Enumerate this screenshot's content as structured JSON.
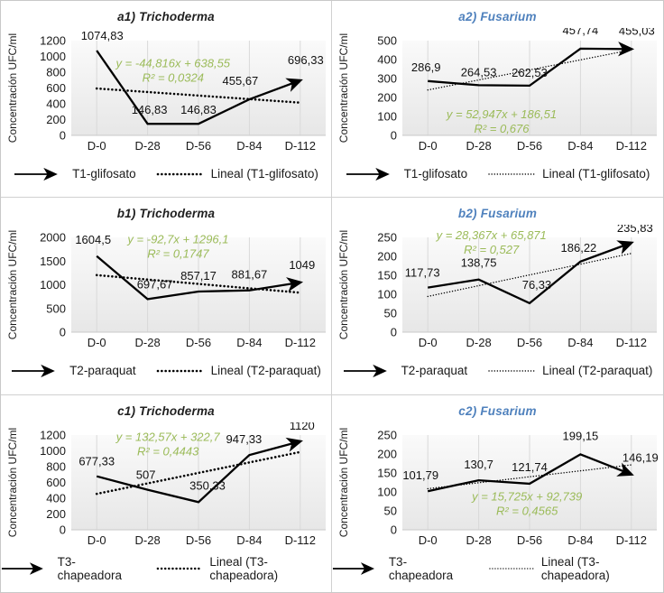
{
  "figure": {
    "background": "#ffffff",
    "border_color": "#c9c9c9",
    "gridline_color": "#d9d9d9",
    "series_color": "#000000",
    "equation_color": "#9bbb59",
    "trichoderma_title_color": "#1f1f1f",
    "fusarium_title_color": "#4f81bd",
    "plot_fill_top": "#fafafa",
    "plot_fill_bottom": "#e7e7e7"
  },
  "chart_data": [
    {
      "id": "a1",
      "type": "line",
      "title": "a1) Trichoderma",
      "title_color": "#1f1f1f",
      "ylabel": "Concentración UFC/ml",
      "categories": [
        "D-0",
        "D-28",
        "D-56",
        "D-84",
        "D-112"
      ],
      "values": [
        1074.83,
        146.83,
        146.83,
        455.67,
        696.33
      ],
      "value_labels": [
        "1074,83",
        "146,83",
        "146,83",
        "455,67",
        "696,33"
      ],
      "ylim": [
        0,
        1200
      ],
      "yticks": [
        0,
        200,
        400,
        600,
        800,
        1000,
        1200
      ],
      "grid": "vertical",
      "trendline": {
        "slope": -44.816,
        "intercept": 638.55,
        "equation": "y = -44,816x + 638,55",
        "r2": "R² = 0,0324",
        "style": "bold-dotted"
      },
      "series_name": "T1-glifosato",
      "trend_legend": "Lineal (T1-glifosato)"
    },
    {
      "id": "a2",
      "type": "line",
      "title": "a2) Fusarium",
      "title_color": "#4f81bd",
      "ylabel": "Concentración UFC/ml",
      "categories": [
        "D-0",
        "D-28",
        "D-56",
        "D-84",
        "D-112"
      ],
      "values": [
        286.9,
        264.53,
        262.53,
        457.74,
        455.03
      ],
      "value_labels": [
        "286,9",
        "264,53",
        "262,53",
        "457,74",
        "455,03"
      ],
      "ylim": [
        0,
        500
      ],
      "yticks": [
        0,
        100,
        200,
        300,
        400,
        500
      ],
      "grid": "vertical",
      "trendline": {
        "slope": 52.947,
        "intercept": 186.51,
        "equation": "y = 52,947x + 186,51",
        "r2": "R² = 0,676",
        "style": "fine-dotted"
      },
      "series_name": "T1-glifosato",
      "trend_legend": "Lineal (T1-glifosato)"
    },
    {
      "id": "b1",
      "type": "line",
      "title": "b1) Trichoderma",
      "title_color": "#1f1f1f",
      "ylabel": "Concentración UFC/ml",
      "categories": [
        "D-0",
        "D-28",
        "D-56",
        "D-84",
        "D-112"
      ],
      "values": [
        1604.5,
        697.67,
        857.17,
        881.67,
        1049
      ],
      "value_labels": [
        "1604,5",
        "697,67",
        "857,17",
        "881,67",
        "1049"
      ],
      "ylim": [
        0,
        2000
      ],
      "yticks": [
        0,
        500,
        1000,
        1500,
        2000
      ],
      "grid": "vertical",
      "trendline": {
        "slope": -92.7,
        "intercept": 1296.1,
        "equation": "y = -92,7x + 1296,1",
        "r2": "R² = 0,1747",
        "style": "bold-dotted"
      },
      "series_name": "T2-paraquat",
      "trend_legend": "Lineal (T2-paraquat)"
    },
    {
      "id": "b2",
      "type": "line",
      "title": "b2) Fusarium",
      "title_color": "#4f81bd",
      "ylabel": "Concentración UFC/ml",
      "categories": [
        "D-0",
        "D-28",
        "D-56",
        "D-84",
        "D-112"
      ],
      "values": [
        117.73,
        138.75,
        76.33,
        186.22,
        235.83
      ],
      "value_labels": [
        "117,73",
        "138,75",
        "76,33",
        "186,22",
        "235,83"
      ],
      "ylim": [
        0,
        250
      ],
      "yticks": [
        0,
        50,
        100,
        150,
        200,
        250
      ],
      "grid": "vertical",
      "trendline": {
        "slope": 28.367,
        "intercept": 65.871,
        "equation": "y = 28,367x + 65,871",
        "r2": "R² = 0,527",
        "style": "fine-dotted"
      },
      "series_name": "T2-paraquat",
      "trend_legend": "Lineal (T2-paraquat)"
    },
    {
      "id": "c1",
      "type": "line",
      "title": "c1) Trichoderma",
      "title_color": "#1f1f1f",
      "ylabel": "Concentración UFC/ml",
      "categories": [
        "D-0",
        "D-28",
        "D-56",
        "D-84",
        "D-112"
      ],
      "values": [
        677.33,
        507,
        350.33,
        947.33,
        1120
      ],
      "value_labels": [
        "677,33",
        "507",
        "350,33",
        "947,33",
        "1120"
      ],
      "ylim": [
        0,
        1200
      ],
      "yticks": [
        0,
        200,
        400,
        600,
        800,
        1000,
        1200
      ],
      "grid": "vertical",
      "trendline": {
        "slope": 132.57,
        "intercept": 322.7,
        "equation": "y = 132,57x + 322,7",
        "r2": "R² = 0,4443",
        "style": "bold-dotted"
      },
      "series_name": "T3-chapeadora",
      "trend_legend": "Lineal (T3-chapeadora)"
    },
    {
      "id": "c2",
      "type": "line",
      "title": "c2) Fusarium",
      "title_color": "#4f81bd",
      "ylabel": "Concentración UFC/ml",
      "categories": [
        "D-0",
        "D-28",
        "D-56",
        "D-84",
        "D-112"
      ],
      "values": [
        101.79,
        130.7,
        121.74,
        199.15,
        146.19
      ],
      "value_labels": [
        "101,79",
        "130,7",
        "121,74",
        "199,15",
        "146,19"
      ],
      "ylim": [
        0,
        250
      ],
      "yticks": [
        0,
        50,
        100,
        150,
        200,
        250
      ],
      "grid": "vertical",
      "trendline": {
        "slope": 15.725,
        "intercept": 92.739,
        "equation": "y = 15,725x + 92,739",
        "r2": "R² = 0,4565",
        "style": "fine-dotted"
      },
      "series_name": "T3-chapeadora",
      "trend_legend": "Lineal (T3-chapeadora)"
    }
  ]
}
